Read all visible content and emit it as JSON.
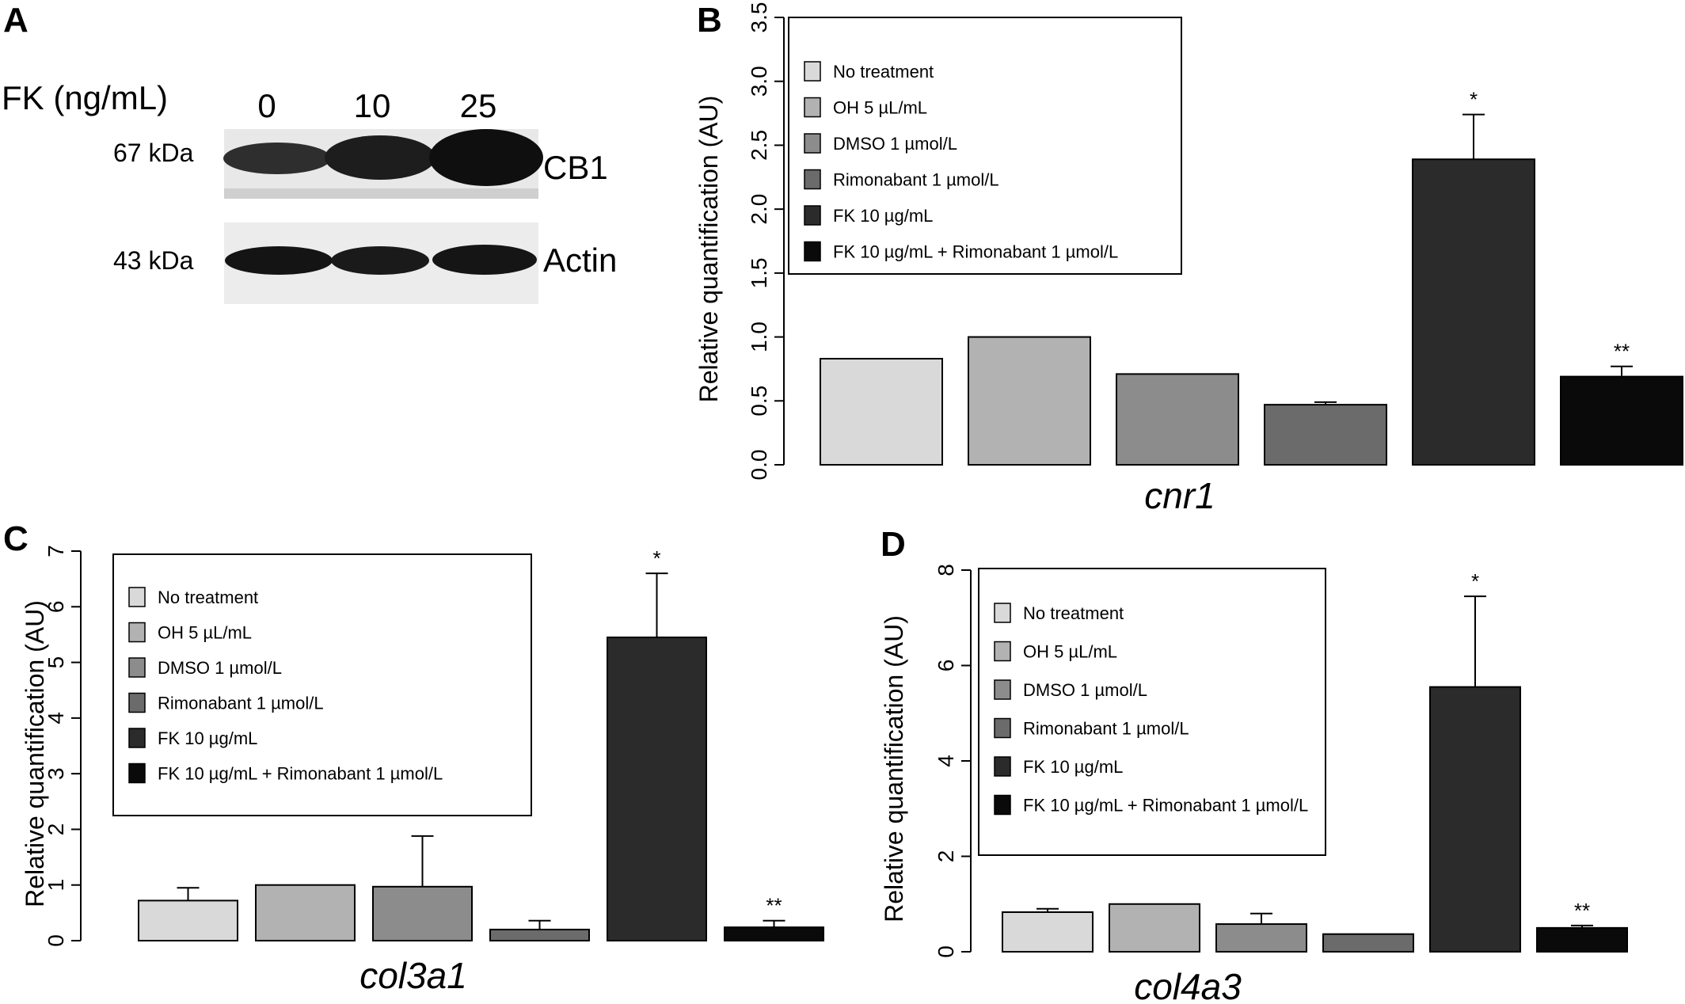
{
  "panel_a": {
    "label": "A",
    "treatment_label": "FK (ng/mL)",
    "lanes": [
      "0",
      "10",
      "25"
    ],
    "blots": [
      {
        "size": "67  kDa",
        "name": "CB1"
      },
      {
        "size": "43 kDa",
        "name": "Actin"
      }
    ]
  },
  "legend_items": [
    {
      "label": "No treatment",
      "color": "#d9d9d9"
    },
    {
      "label": "OH 5 µL/mL",
      "color": "#b2b2b2"
    },
    {
      "label": "DMSO 1 µmol/L",
      "color": "#8c8c8c"
    },
    {
      "label": "Rimonabant 1 µmol/L",
      "color": "#6b6b6b"
    },
    {
      "label": "FK 10 µg/mL",
      "color": "#2b2b2b"
    },
    {
      "label": "FK 10 µg/mL + Rimonabant 1 µmol/L",
      "color": "#0a0a0a"
    }
  ],
  "chart_data": [
    {
      "panel": "B",
      "type": "bar",
      "xlabel": "cnr1",
      "ylabel": "Relative quantification (AU)",
      "ylim": [
        0,
        3.5
      ],
      "yticks": [
        "0.0",
        "0.5",
        "1.0",
        "1.5",
        "2.0",
        "2.5",
        "3.0",
        "3.5"
      ],
      "categories": [
        "No treatment",
        "OH 5 µL/mL",
        "DMSO 1 µmol/L",
        "Rimonabant 1 µmol/L",
        "FK 10 µg/mL",
        "FK 10 µg/mL + Rimonabant 1 µmol/L"
      ],
      "values": [
        0.83,
        1.0,
        0.71,
        0.47,
        2.39,
        0.69
      ],
      "error_upper": [
        null,
        null,
        null,
        0.49,
        2.74,
        0.77
      ],
      "annotations": [
        "",
        "",
        "",
        "",
        "*",
        "**"
      ],
      "legend": "top-left"
    },
    {
      "panel": "C",
      "type": "bar",
      "xlabel": "col3a1",
      "ylabel": "Relative quantification (AU)",
      "ylim": [
        0,
        7
      ],
      "yticks": [
        "0",
        "1",
        "2",
        "3",
        "4",
        "5",
        "6",
        "7"
      ],
      "categories": [
        "No treatment",
        "OH 5 µL/mL",
        "DMSO 1 µmol/L",
        "Rimonabant 1 µmol/L",
        "FK 10 µg/mL",
        "FK 10 µg/mL + Rimonabant 1 µmol/L"
      ],
      "values": [
        0.72,
        1.0,
        0.97,
        0.2,
        5.45,
        0.24
      ],
      "error_upper": [
        0.95,
        null,
        1.88,
        0.36,
        6.6,
        0.36
      ],
      "annotations": [
        "",
        "",
        "",
        "",
        "*",
        "**"
      ],
      "legend": "top-left"
    },
    {
      "panel": "D",
      "type": "bar",
      "xlabel": "col4a3",
      "ylabel": "Relative quantification (AU)",
      "ylim": [
        0,
        8
      ],
      "yticks": [
        "0",
        "2",
        "4",
        "6",
        "8"
      ],
      "categories": [
        "No treatment",
        "OH 5 µL/mL",
        "DMSO 1 µmol/L",
        "Rimonabant 1 µmol/L",
        "FK 10 µg/mL",
        "FK 10 µg/mL + Rimonabant 1 µmol/L"
      ],
      "values": [
        0.83,
        1.0,
        0.58,
        0.37,
        5.55,
        0.5
      ],
      "error_upper": [
        0.9,
        null,
        0.8,
        null,
        7.45,
        0.55
      ],
      "annotations": [
        "",
        "",
        "",
        "",
        "*",
        "**"
      ],
      "legend": "top-left"
    }
  ]
}
